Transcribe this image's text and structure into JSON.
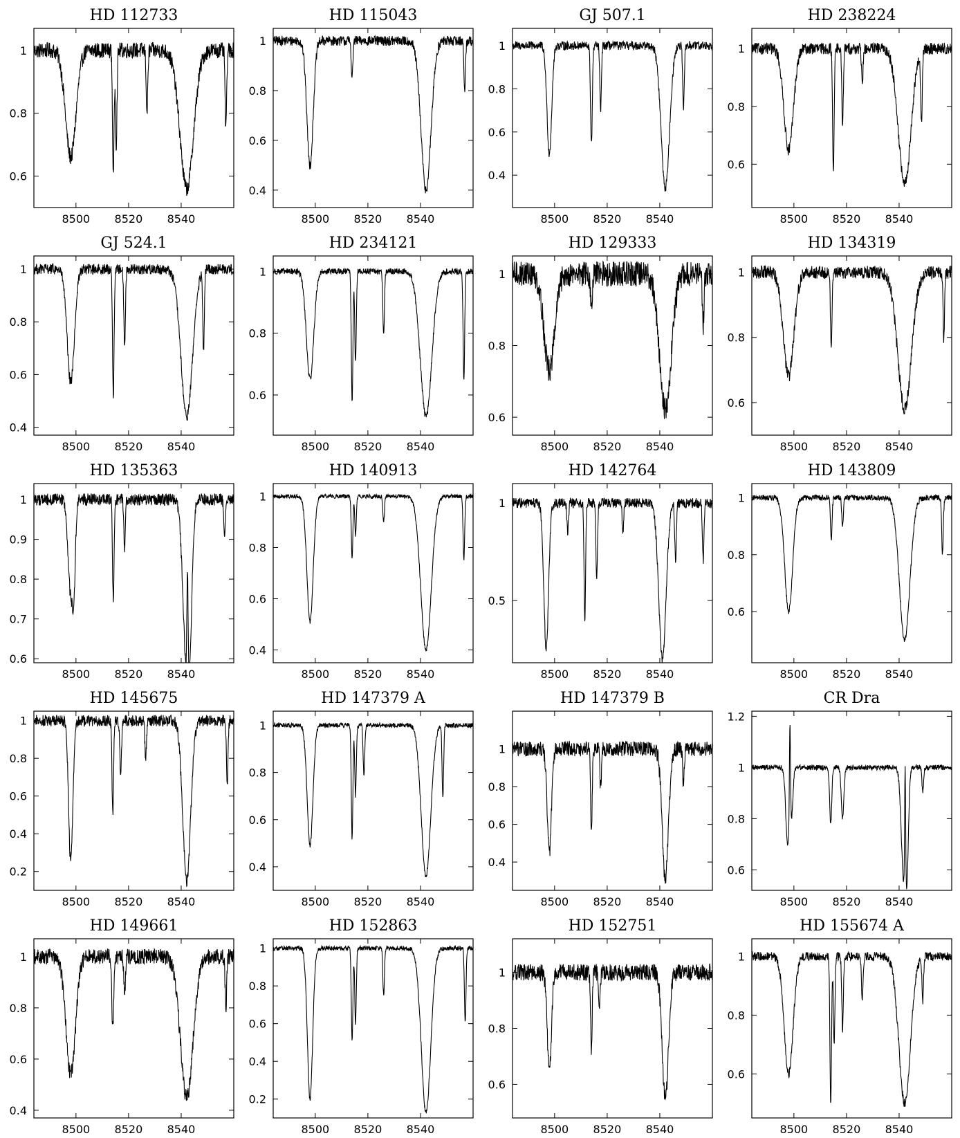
{
  "chart_data": [
    {
      "type": "line",
      "title": "HD 112733",
      "xlim": [
        8484,
        8560
      ],
      "ylim": [
        0.5,
        1.07
      ],
      "x_ticks": [
        "8500",
        "8520",
        "8540"
      ],
      "y_ticks": [
        "0.6",
        "0.8",
        "1"
      ],
      "continuum_noise": 0.025,
      "lines": [
        {
          "x": 8498.0,
          "depth": 0.34,
          "width": 2.0
        },
        {
          "x": 8514.2,
          "depth": 0.4,
          "width": 0.3
        },
        {
          "x": 8515.3,
          "depth": 0.3,
          "width": 0.3
        },
        {
          "x": 8527.0,
          "depth": 0.2,
          "width": 0.3
        },
        {
          "x": 8542.1,
          "depth": 0.44,
          "width": 2.6
        },
        {
          "x": 8557.0,
          "depth": 0.25,
          "width": 0.3
        }
      ]
    },
    {
      "type": "line",
      "title": "HD 115043",
      "xlim": [
        8484,
        8560
      ],
      "ylim": [
        0.33,
        1.05
      ],
      "x_ticks": [
        "8500",
        "8520",
        "8540"
      ],
      "y_ticks": [
        "0.4",
        "0.6",
        "0.8",
        "1"
      ],
      "continuum_noise": 0.02,
      "lines": [
        {
          "x": 8498.0,
          "depth": 0.5,
          "width": 1.2
        },
        {
          "x": 8514.0,
          "depth": 0.15,
          "width": 0.3
        },
        {
          "x": 8542.1,
          "depth": 0.6,
          "width": 1.9
        },
        {
          "x": 8556.8,
          "depth": 0.2,
          "width": 0.3
        }
      ]
    },
    {
      "type": "line",
      "title": "GJ 507.1",
      "xlim": [
        8484,
        8560
      ],
      "ylim": [
        0.25,
        1.08
      ],
      "x_ticks": [
        "8500",
        "8520",
        "8540"
      ],
      "y_ticks": [
        "0.4",
        "0.6",
        "0.8",
        "1"
      ],
      "continuum_noise": 0.02,
      "lines": [
        {
          "x": 8498.0,
          "depth": 0.5,
          "width": 0.9
        },
        {
          "x": 8514.0,
          "depth": 0.45,
          "width": 0.35
        },
        {
          "x": 8517.5,
          "depth": 0.3,
          "width": 0.3
        },
        {
          "x": 8542.1,
          "depth": 0.66,
          "width": 1.6
        },
        {
          "x": 8549.0,
          "depth": 0.3,
          "width": 0.3
        }
      ]
    },
    {
      "type": "line",
      "title": "HD 238224",
      "xlim": [
        8484,
        8560
      ],
      "ylim": [
        0.45,
        1.07
      ],
      "x_ticks": [
        "8500",
        "8520",
        "8540"
      ],
      "y_ticks": [
        "0.6",
        "0.8",
        "1"
      ],
      "continuum_noise": 0.02,
      "lines": [
        {
          "x": 8498.0,
          "depth": 0.35,
          "width": 1.8
        },
        {
          "x": 8515.0,
          "depth": 0.42,
          "width": 0.3
        },
        {
          "x": 8518.5,
          "depth": 0.26,
          "width": 0.3
        },
        {
          "x": 8526.0,
          "depth": 0.12,
          "width": 0.3
        },
        {
          "x": 8542.1,
          "depth": 0.47,
          "width": 2.4
        },
        {
          "x": 8548.5,
          "depth": 0.25,
          "width": 0.3
        }
      ]
    },
    {
      "type": "line",
      "title": "GJ 524.1",
      "xlim": [
        8484,
        8560
      ],
      "ylim": [
        0.37,
        1.05
      ],
      "x_ticks": [
        "8500",
        "8520",
        "8540"
      ],
      "y_ticks": [
        "0.4",
        "0.6",
        "0.8",
        "1"
      ],
      "continuum_noise": 0.02,
      "lines": [
        {
          "x": 8498.0,
          "depth": 0.43,
          "width": 1.4
        },
        {
          "x": 8514.2,
          "depth": 0.48,
          "width": 0.3
        },
        {
          "x": 8518.5,
          "depth": 0.3,
          "width": 0.3
        },
        {
          "x": 8542.1,
          "depth": 0.56,
          "width": 2.2
        },
        {
          "x": 8548.5,
          "depth": 0.3,
          "width": 0.3
        }
      ]
    },
    {
      "type": "line",
      "title": "HD 234121",
      "xlim": [
        8484,
        8560
      ],
      "ylim": [
        0.47,
        1.05
      ],
      "x_ticks": [
        "8500",
        "8520",
        "8540"
      ],
      "y_ticks": [
        "0.6",
        "0.8",
        "1"
      ],
      "continuum_noise": 0.01,
      "lines": [
        {
          "x": 8498.0,
          "depth": 0.35,
          "width": 1.4
        },
        {
          "x": 8514.0,
          "depth": 0.42,
          "width": 0.3
        },
        {
          "x": 8515.3,
          "depth": 0.3,
          "width": 0.3
        },
        {
          "x": 8526.0,
          "depth": 0.2,
          "width": 0.3
        },
        {
          "x": 8542.1,
          "depth": 0.47,
          "width": 2.2
        },
        {
          "x": 8556.5,
          "depth": 0.35,
          "width": 0.3
        }
      ]
    },
    {
      "type": "line",
      "title": "HD 129333",
      "xlim": [
        8484,
        8560
      ],
      "ylim": [
        0.55,
        1.05
      ],
      "x_ticks": [
        "8500",
        "8520",
        "8540"
      ],
      "y_ticks": [
        "0.6",
        "0.8",
        "1"
      ],
      "continuum_noise": 0.035,
      "lines": [
        {
          "x": 8498.0,
          "depth": 0.27,
          "width": 2.0
        },
        {
          "x": 8514.0,
          "depth": 0.1,
          "width": 0.4
        },
        {
          "x": 8542.1,
          "depth": 0.38,
          "width": 2.2
        },
        {
          "x": 8556.5,
          "depth": 0.15,
          "width": 0.3
        }
      ]
    },
    {
      "type": "line",
      "title": "HD 134319",
      "xlim": [
        8484,
        8560
      ],
      "ylim": [
        0.5,
        1.05
      ],
      "x_ticks": [
        "8500",
        "8520",
        "8540"
      ],
      "y_ticks": [
        "0.6",
        "0.8",
        "1"
      ],
      "continuum_noise": 0.02,
      "lines": [
        {
          "x": 8498.0,
          "depth": 0.32,
          "width": 2.0
        },
        {
          "x": 8514.2,
          "depth": 0.23,
          "width": 0.3
        },
        {
          "x": 8542.1,
          "depth": 0.42,
          "width": 2.6
        },
        {
          "x": 8557.0,
          "depth": 0.2,
          "width": 0.3
        }
      ]
    },
    {
      "type": "line",
      "title": "HD 135363",
      "xlim": [
        8484,
        8560
      ],
      "ylim": [
        0.59,
        1.04
      ],
      "x_ticks": [
        "8500",
        "8520",
        "8540"
      ],
      "y_ticks": [
        "0.6",
        "0.7",
        "0.8",
        "0.9",
        "1"
      ],
      "continuum_noise": 0.015,
      "lines": [
        {
          "x": 8497.8,
          "depth": 0.22,
          "width": 0.9
        },
        {
          "x": 8499.2,
          "depth": 0.2,
          "width": 0.6
        },
        {
          "x": 8514.2,
          "depth": 0.26,
          "width": 0.3
        },
        {
          "x": 8518.5,
          "depth": 0.12,
          "width": 0.3
        },
        {
          "x": 8541.6,
          "depth": 0.32,
          "width": 1.2
        },
        {
          "x": 8543.2,
          "depth": 0.3,
          "width": 1.0
        },
        {
          "x": 8556.5,
          "depth": 0.1,
          "width": 0.3
        }
      ],
      "emission": [
        {
          "x": 8542.4,
          "height": 0.3,
          "width": 0.25
        }
      ]
    },
    {
      "type": "line",
      "title": "HD 140913",
      "xlim": [
        8484,
        8560
      ],
      "ylim": [
        0.35,
        1.05
      ],
      "x_ticks": [
        "8500",
        "8520",
        "8540"
      ],
      "y_ticks": [
        "0.4",
        "0.6",
        "0.8",
        "1"
      ],
      "continuum_noise": 0.008,
      "lines": [
        {
          "x": 8498.0,
          "depth": 0.49,
          "width": 1.2
        },
        {
          "x": 8514.0,
          "depth": 0.24,
          "width": 0.3
        },
        {
          "x": 8515.3,
          "depth": 0.15,
          "width": 0.3
        },
        {
          "x": 8526.0,
          "depth": 0.1,
          "width": 0.3
        },
        {
          "x": 8542.1,
          "depth": 0.6,
          "width": 2.0
        },
        {
          "x": 8556.5,
          "depth": 0.25,
          "width": 0.3
        }
      ]
    },
    {
      "type": "line",
      "title": "HD 142764",
      "xlim": [
        8484,
        8560
      ],
      "ylim": [
        0.18,
        1.1
      ],
      "x_ticks": [
        "8500",
        "8520",
        "8540"
      ],
      "y_ticks": [
        "0.5",
        "1"
      ],
      "continuum_noise": 0.025,
      "lines": [
        {
          "x": 8496.8,
          "depth": 0.75,
          "width": 0.9
        },
        {
          "x": 8511.5,
          "depth": 0.6,
          "width": 0.3
        },
        {
          "x": 8516.0,
          "depth": 0.4,
          "width": 0.3
        },
        {
          "x": 8505.0,
          "depth": 0.15,
          "width": 0.3
        },
        {
          "x": 8526.0,
          "depth": 0.15,
          "width": 0.3
        },
        {
          "x": 8541.0,
          "depth": 0.8,
          "width": 1.4
        },
        {
          "x": 8546.0,
          "depth": 0.3,
          "width": 0.3
        },
        {
          "x": 8556.5,
          "depth": 0.3,
          "width": 0.3
        }
      ]
    },
    {
      "type": "line",
      "title": "HD 143809",
      "xlim": [
        8484,
        8560
      ],
      "ylim": [
        0.42,
        1.05
      ],
      "x_ticks": [
        "8500",
        "8520",
        "8540"
      ],
      "y_ticks": [
        "0.6",
        "0.8",
        "1"
      ],
      "continuum_noise": 0.01,
      "lines": [
        {
          "x": 8498.0,
          "depth": 0.4,
          "width": 1.5
        },
        {
          "x": 8514.2,
          "depth": 0.15,
          "width": 0.3
        },
        {
          "x": 8518.5,
          "depth": 0.1,
          "width": 0.3
        },
        {
          "x": 8542.1,
          "depth": 0.5,
          "width": 2.0
        },
        {
          "x": 8556.5,
          "depth": 0.2,
          "width": 0.3
        }
      ]
    },
    {
      "type": "line",
      "title": "HD 145675",
      "xlim": [
        8484,
        8560
      ],
      "ylim": [
        0.1,
        1.05
      ],
      "x_ticks": [
        "8500",
        "8520",
        "8540"
      ],
      "y_ticks": [
        "0.2",
        "0.4",
        "0.6",
        "0.8",
        "1"
      ],
      "continuum_noise": 0.03,
      "lines": [
        {
          "x": 8498.0,
          "depth": 0.75,
          "width": 0.8
        },
        {
          "x": 8514.0,
          "depth": 0.5,
          "width": 0.3
        },
        {
          "x": 8517.0,
          "depth": 0.3,
          "width": 0.3
        },
        {
          "x": 8526.5,
          "depth": 0.2,
          "width": 0.3
        },
        {
          "x": 8542.1,
          "depth": 0.85,
          "width": 1.5
        },
        {
          "x": 8557.5,
          "depth": 0.35,
          "width": 0.3
        }
      ]
    },
    {
      "type": "line",
      "title": "HD 147379 A",
      "xlim": [
        8484,
        8560
      ],
      "ylim": [
        0.3,
        1.06
      ],
      "x_ticks": [
        "8500",
        "8520",
        "8540"
      ],
      "y_ticks": [
        "0.4",
        "0.6",
        "0.8",
        "1"
      ],
      "continuum_noise": 0.01,
      "lines": [
        {
          "x": 8498.0,
          "depth": 0.51,
          "width": 1.1
        },
        {
          "x": 8514.0,
          "depth": 0.48,
          "width": 0.3
        },
        {
          "x": 8515.3,
          "depth": 0.3,
          "width": 0.3
        },
        {
          "x": 8518.5,
          "depth": 0.22,
          "width": 0.3
        },
        {
          "x": 8542.1,
          "depth": 0.64,
          "width": 1.8
        },
        {
          "x": 8548.5,
          "depth": 0.3,
          "width": 0.3
        }
      ]
    },
    {
      "type": "line",
      "title": "HD 147379 B",
      "xlim": [
        8484,
        8560
      ],
      "ylim": [
        0.25,
        1.2
      ],
      "x_ticks": [
        "8500",
        "8520",
        "8540"
      ],
      "y_ticks": [
        "0.4",
        "0.6",
        "0.8",
        "1"
      ],
      "continuum_noise": 0.04,
      "lines": [
        {
          "x": 8498.0,
          "depth": 0.55,
          "width": 0.8
        },
        {
          "x": 8514.0,
          "depth": 0.42,
          "width": 0.3
        },
        {
          "x": 8517.5,
          "depth": 0.2,
          "width": 0.3
        },
        {
          "x": 8542.1,
          "depth": 0.69,
          "width": 1.2
        },
        {
          "x": 8549.0,
          "depth": 0.2,
          "width": 0.3
        }
      ]
    },
    {
      "type": "line",
      "title": "CR Dra",
      "xlim": [
        8484,
        8560
      ],
      "ylim": [
        0.52,
        1.22
      ],
      "x_ticks": [
        "8500",
        "8520",
        "8540"
      ],
      "y_ticks": [
        "0.6",
        "0.8",
        "1",
        "1.2"
      ],
      "continuum_noise": 0.01,
      "lines": [
        {
          "x": 8497.6,
          "depth": 0.3,
          "width": 0.7
        },
        {
          "x": 8499.2,
          "depth": 0.17,
          "width": 0.5
        },
        {
          "x": 8514.0,
          "depth": 0.22,
          "width": 0.4
        },
        {
          "x": 8518.5,
          "depth": 0.2,
          "width": 0.5
        },
        {
          "x": 8541.7,
          "depth": 0.42,
          "width": 0.9
        },
        {
          "x": 8543.0,
          "depth": 0.32,
          "width": 0.6
        },
        {
          "x": 8549.0,
          "depth": 0.1,
          "width": 0.3
        }
      ],
      "emission": [
        {
          "x": 8498.5,
          "height": 0.37,
          "width": 0.2
        },
        {
          "x": 8542.3,
          "height": 0.5,
          "width": 0.2
        }
      ]
    },
    {
      "type": "line",
      "title": "HD 149661",
      "xlim": [
        8484,
        8560
      ],
      "ylim": [
        0.37,
        1.07
      ],
      "x_ticks": [
        "8500",
        "8520",
        "8540"
      ],
      "y_ticks": [
        "0.4",
        "0.6",
        "0.8",
        "1"
      ],
      "continuum_noise": 0.03,
      "lines": [
        {
          "x": 8498.0,
          "depth": 0.46,
          "width": 1.8
        },
        {
          "x": 8514.0,
          "depth": 0.27,
          "width": 0.4
        },
        {
          "x": 8518.5,
          "depth": 0.15,
          "width": 0.3
        },
        {
          "x": 8542.1,
          "depth": 0.55,
          "width": 2.4
        },
        {
          "x": 8557.0,
          "depth": 0.2,
          "width": 0.3
        }
      ]
    },
    {
      "type": "line",
      "title": "HD 152863",
      "xlim": [
        8484,
        8560
      ],
      "ylim": [
        0.1,
        1.05
      ],
      "x_ticks": [
        "8500",
        "8520",
        "8540"
      ],
      "y_ticks": [
        "0.2",
        "0.4",
        "0.6",
        "0.8",
        "1"
      ],
      "continuum_noise": 0.012,
      "lines": [
        {
          "x": 8498.0,
          "depth": 0.8,
          "width": 1.0
        },
        {
          "x": 8514.0,
          "depth": 0.48,
          "width": 0.3
        },
        {
          "x": 8515.3,
          "depth": 0.4,
          "width": 0.3
        },
        {
          "x": 8526.0,
          "depth": 0.25,
          "width": 0.3
        },
        {
          "x": 8542.1,
          "depth": 0.87,
          "width": 1.8
        },
        {
          "x": 8557.0,
          "depth": 0.4,
          "width": 0.3
        }
      ]
    },
    {
      "type": "line",
      "title": "HD 152751",
      "xlim": [
        8484,
        8560
      ],
      "ylim": [
        0.48,
        1.12
      ],
      "x_ticks": [
        "8500",
        "8520",
        "8540"
      ],
      "y_ticks": [
        "0.6",
        "0.8",
        "1"
      ],
      "continuum_noise": 0.03,
      "lines": [
        {
          "x": 8498.0,
          "depth": 0.35,
          "width": 0.8
        },
        {
          "x": 8514.0,
          "depth": 0.28,
          "width": 0.3
        },
        {
          "x": 8517.0,
          "depth": 0.15,
          "width": 0.3
        },
        {
          "x": 8542.1,
          "depth": 0.45,
          "width": 1.2
        }
      ]
    },
    {
      "type": "line",
      "title": "HD 155674 A",
      "xlim": [
        8484,
        8560
      ],
      "ylim": [
        0.45,
        1.06
      ],
      "x_ticks": [
        "8500",
        "8520",
        "8540"
      ],
      "y_ticks": [
        "0.6",
        "0.8",
        "1"
      ],
      "continuum_noise": 0.015,
      "lines": [
        {
          "x": 8498.0,
          "depth": 0.4,
          "width": 1.7
        },
        {
          "x": 8514.0,
          "depth": 0.5,
          "width": 0.3
        },
        {
          "x": 8515.3,
          "depth": 0.3,
          "width": 0.3
        },
        {
          "x": 8518.5,
          "depth": 0.25,
          "width": 0.3
        },
        {
          "x": 8526.0,
          "depth": 0.15,
          "width": 0.3
        },
        {
          "x": 8542.1,
          "depth": 0.5,
          "width": 2.2
        },
        {
          "x": 8549.0,
          "depth": 0.15,
          "width": 0.3
        }
      ]
    }
  ]
}
